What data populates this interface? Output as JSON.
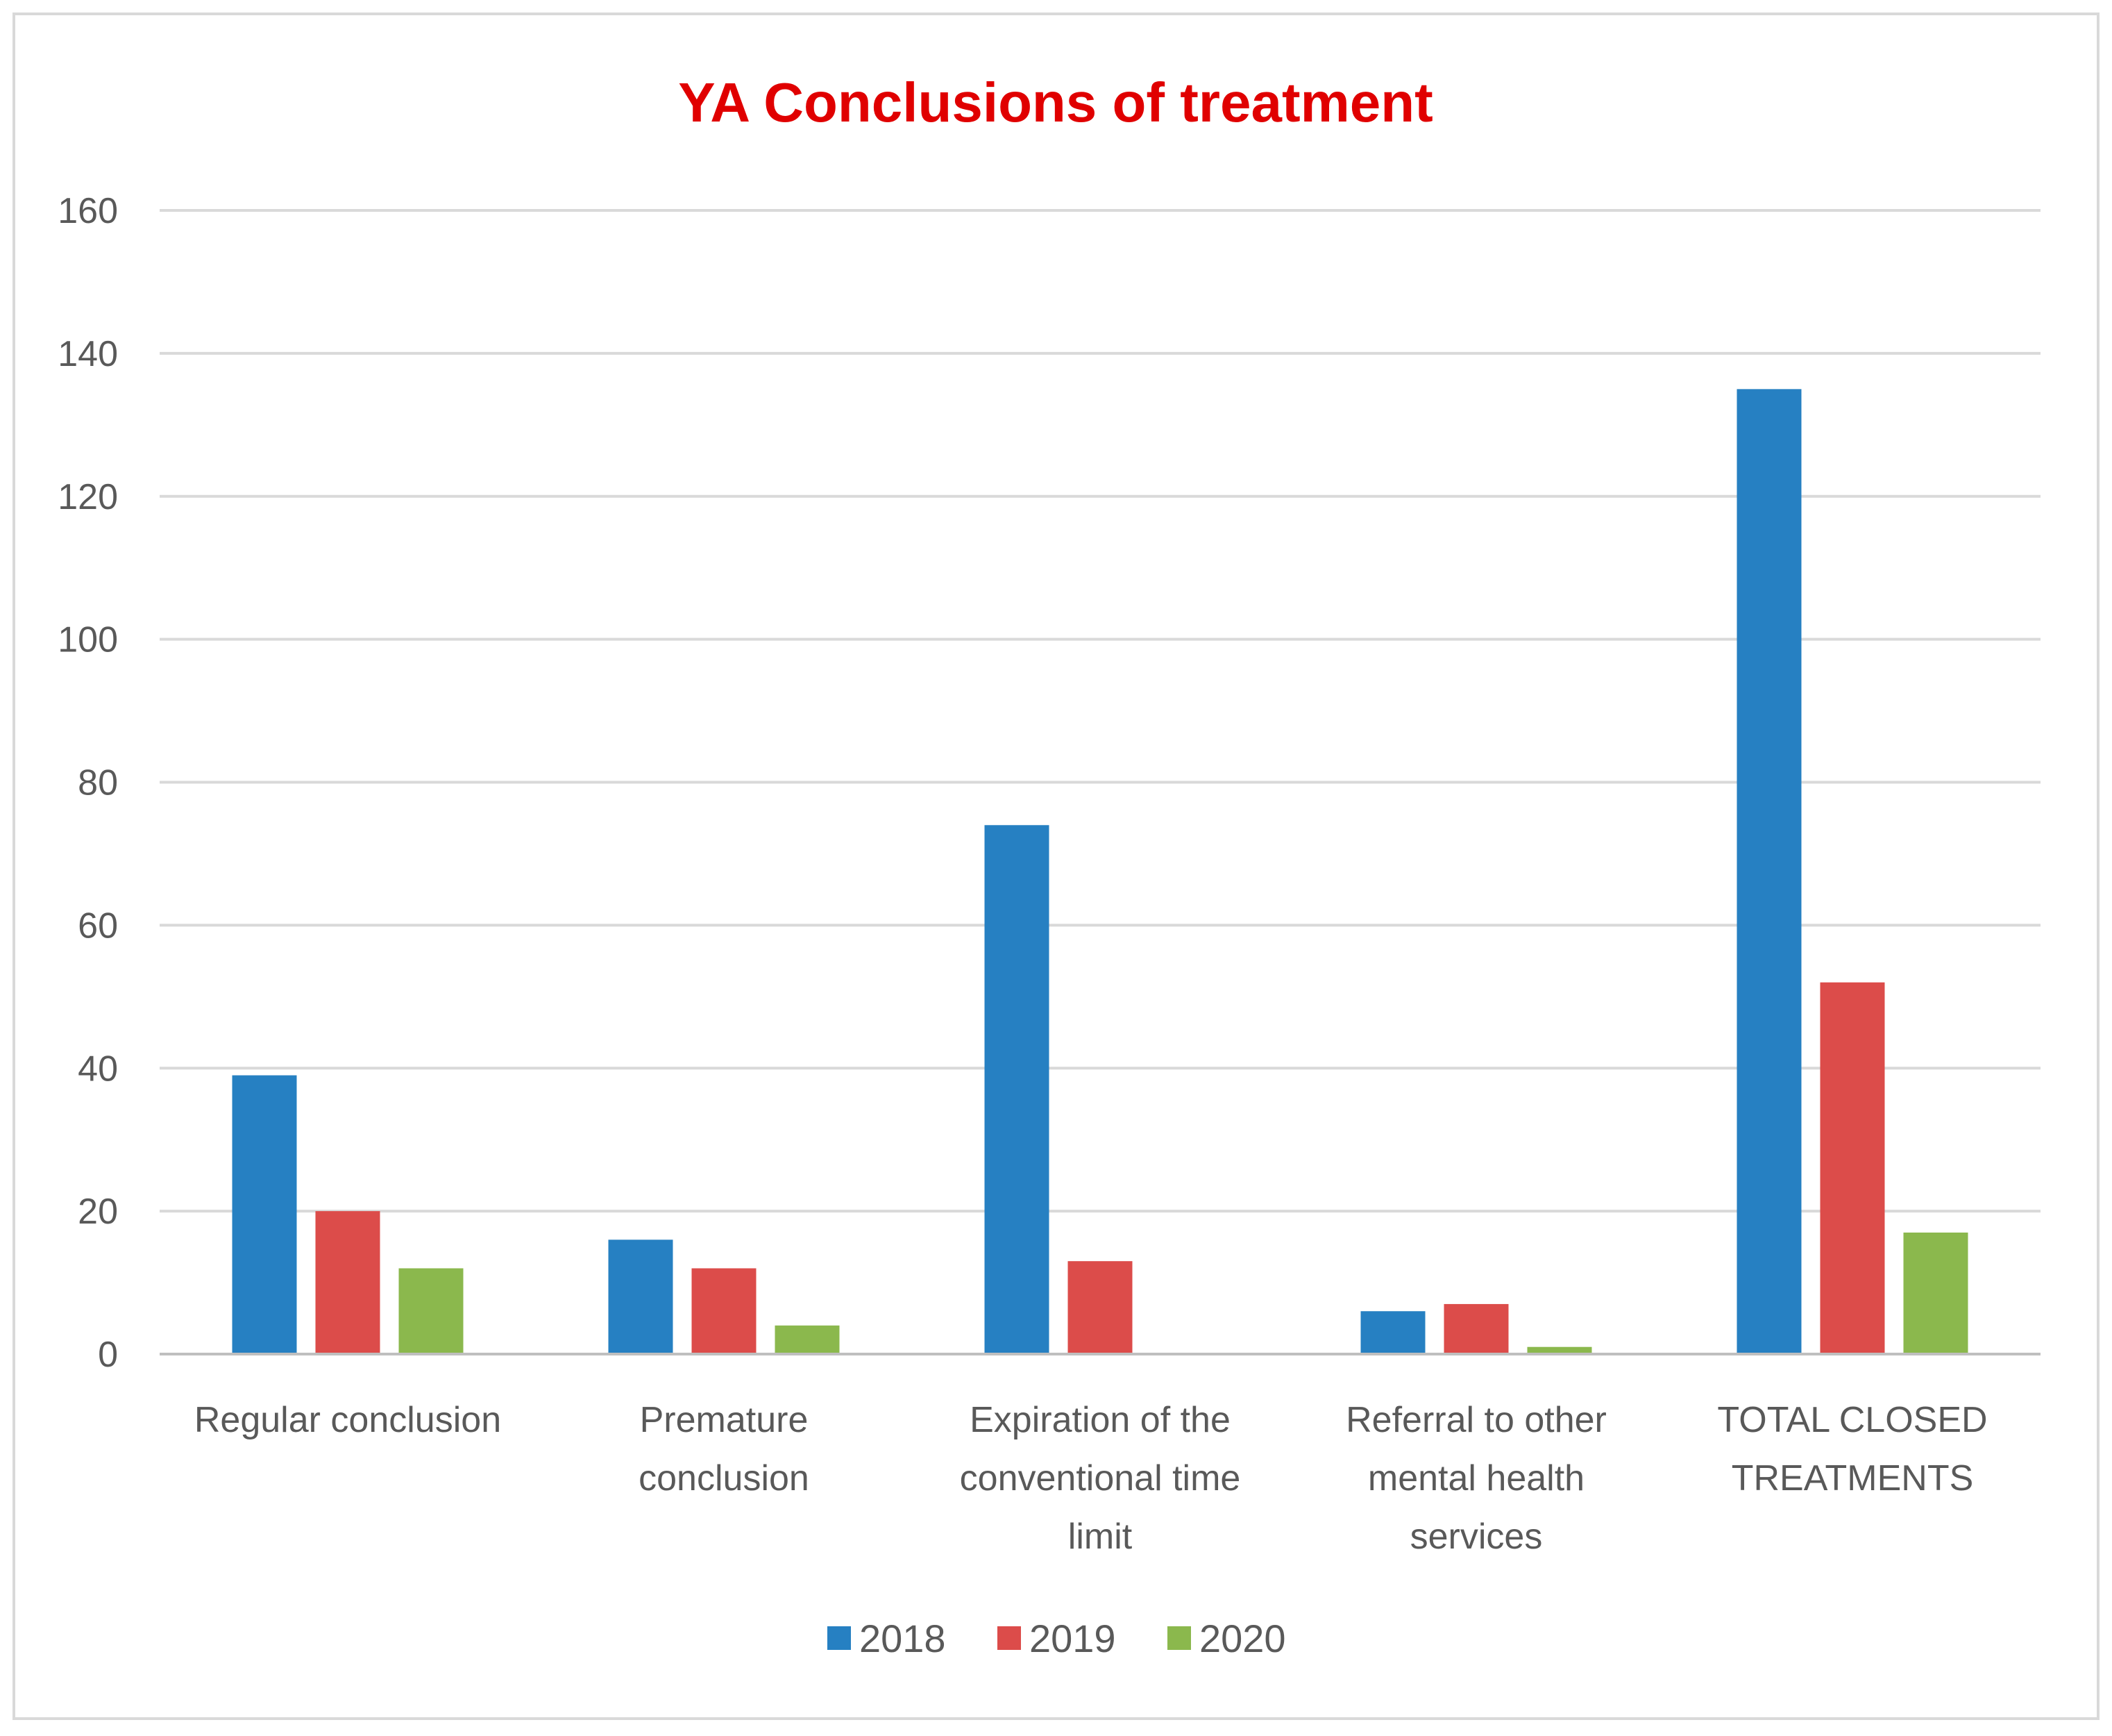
{
  "chart_data": {
    "type": "bar",
    "title": "YA Conclusions of treatment",
    "title_color": "#e00000",
    "xlabel": "",
    "ylabel": "",
    "ylim": [
      0,
      160
    ],
    "yticks": [
      "0",
      "20",
      "40",
      "60",
      "80",
      "100",
      "120",
      "140",
      "160"
    ],
    "grid": true,
    "legend_position": "bottom",
    "categories": [
      [
        "Regular conclusion"
      ],
      [
        "Premature",
        "conclusion"
      ],
      [
        "Expiration of the",
        "conventional time",
        "limit"
      ],
      [
        "Referral to other",
        "mental health",
        "services"
      ],
      [
        "TOTAL CLOSED",
        "TREATMENTS"
      ]
    ],
    "series": [
      {
        "name": "2018",
        "color": "#2680c2",
        "values": [
          39,
          16,
          74,
          6,
          135
        ]
      },
      {
        "name": "2019",
        "color": "#dc4c4a",
        "values": [
          20,
          12,
          13,
          7,
          52
        ]
      },
      {
        "name": "2020",
        "color": "#8bb84d",
        "values": [
          12,
          4,
          0,
          1,
          17
        ]
      }
    ]
  }
}
